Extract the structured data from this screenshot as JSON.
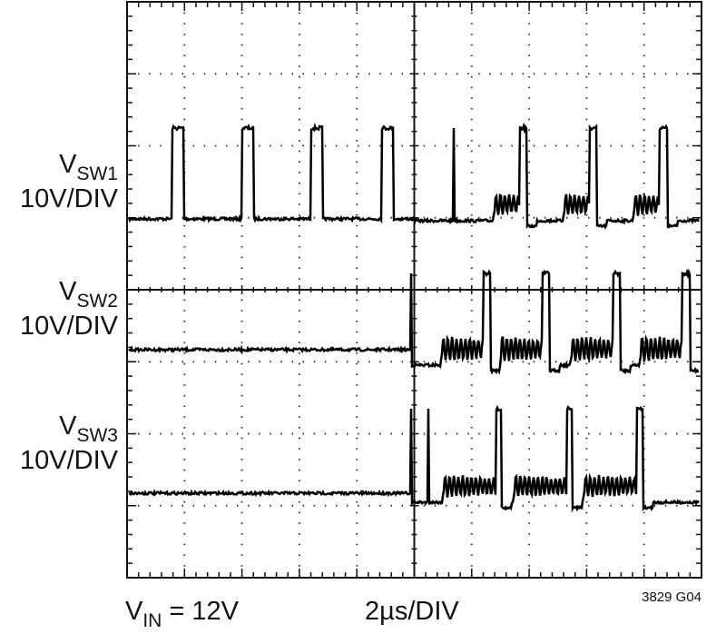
{
  "labels": [
    {
      "symbol": "V",
      "subscript": "SW1",
      "scale": "10V/DIV"
    },
    {
      "symbol": "V",
      "subscript": "SW2",
      "scale": "10V/DIV"
    },
    {
      "symbol": "V",
      "subscript": "SW3",
      "scale": "10V/DIV"
    }
  ],
  "footer": {
    "vin_symbol": "V",
    "vin_subscript": "IN",
    "vin_value": "= 12V",
    "timebase": "2µs/DIV",
    "figure_id": "3829 G04"
  }
}
